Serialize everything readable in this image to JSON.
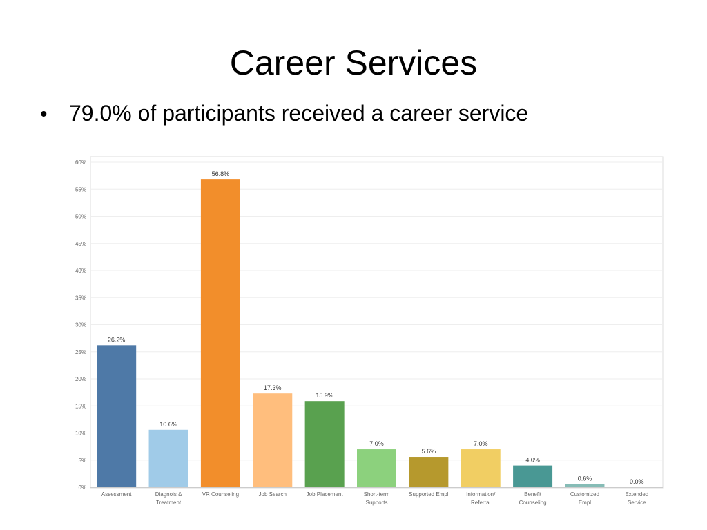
{
  "slide": {
    "title": "Career Services",
    "bullet_marker": "•",
    "bullet_text": "79.0% of participants received a career service"
  },
  "chart_data": {
    "type": "bar",
    "title": "",
    "xlabel": "",
    "ylabel": "",
    "ylim": [
      0,
      60
    ],
    "yticks": [
      "0%",
      "5%",
      "10%",
      "15%",
      "20%",
      "25%",
      "30%",
      "35%",
      "40%",
      "45%",
      "50%",
      "55%",
      "60%"
    ],
    "grid": true,
    "legend": "none",
    "categories": [
      [
        "Assessment"
      ],
      [
        "Diagnois &",
        "Treatment"
      ],
      [
        "VR Counseling"
      ],
      [
        "Job Search"
      ],
      [
        "Job  Placement"
      ],
      [
        "Short-term",
        "Supports"
      ],
      [
        "Supported Empl"
      ],
      [
        "Information/",
        "Referral"
      ],
      [
        "Benefit",
        "Counseling"
      ],
      [
        "Customized",
        "Empl"
      ],
      [
        "Extended",
        "Service"
      ]
    ],
    "values": [
      26.2,
      10.6,
      56.8,
      17.3,
      15.9,
      7.0,
      5.6,
      7.0,
      4.0,
      0.6,
      0.0
    ],
    "labels": [
      "26.2%",
      "10.6%",
      "56.8%",
      "17.3%",
      "15.9%",
      "7.0%",
      "5.6%",
      "7.0%",
      "4.0%",
      "0.6%",
      "0.0%"
    ],
    "colors": [
      "#4E79A7",
      "#A0CBE8",
      "#F28E2B",
      "#FFBE7D",
      "#59A14F",
      "#8CD17D",
      "#B6992D",
      "#F1CE63",
      "#499894",
      "#86BCB6",
      "#E15759"
    ]
  }
}
